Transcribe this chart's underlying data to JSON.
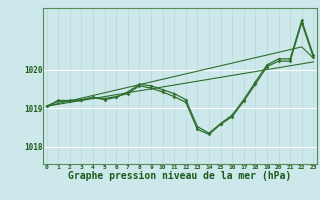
{
  "bg_color": "#cce8ea",
  "grid_color_h": "#ffffff",
  "grid_color_v": "#b8d8da",
  "line_color": "#2d6e2d",
  "xlabel": "Graphe pression niveau de la mer (hPa)",
  "xlabel_fontsize": 7,
  "ylabel_ticks": [
    1018,
    1019,
    1020
  ],
  "xlim": [
    -0.3,
    23.3
  ],
  "ylim": [
    1017.55,
    1021.6
  ],
  "xtick_labels": [
    "0",
    "1",
    "2",
    "3",
    "4",
    "5",
    "6",
    "7",
    "8",
    "9",
    "10",
    "11",
    "12",
    "13",
    "14",
    "15",
    "16",
    "17",
    "18",
    "19",
    "20",
    "21",
    "22",
    "23"
  ],
  "series1": [
    1019.05,
    1019.2,
    1019.2,
    1019.22,
    1019.28,
    1019.25,
    1019.3,
    1019.38,
    1019.58,
    1019.52,
    1019.42,
    1019.3,
    1019.15,
    1018.45,
    1018.32,
    1018.58,
    1018.78,
    1019.18,
    1019.62,
    1020.08,
    1020.22,
    1020.22,
    1021.22,
    1020.32
  ],
  "series2": [
    1019.05,
    1019.18,
    1019.18,
    1019.2,
    1019.28,
    1019.22,
    1019.28,
    1019.42,
    1019.62,
    1019.58,
    1019.48,
    1019.38,
    1019.22,
    1018.52,
    1018.35,
    1018.6,
    1018.82,
    1019.22,
    1019.68,
    1020.12,
    1020.28,
    1020.28,
    1021.28,
    1020.38
  ],
  "trend1": [
    1019.05,
    1019.12,
    1019.19,
    1019.26,
    1019.33,
    1019.4,
    1019.47,
    1019.54,
    1019.61,
    1019.68,
    1019.75,
    1019.82,
    1019.89,
    1019.96,
    1020.03,
    1020.1,
    1020.17,
    1020.24,
    1020.31,
    1020.38,
    1020.45,
    1020.52,
    1020.59,
    1020.3
  ],
  "trend2": [
    1019.05,
    1019.1,
    1019.15,
    1019.2,
    1019.25,
    1019.3,
    1019.35,
    1019.4,
    1019.45,
    1019.5,
    1019.55,
    1019.6,
    1019.65,
    1019.7,
    1019.75,
    1019.8,
    1019.85,
    1019.9,
    1019.95,
    1020.0,
    1020.05,
    1020.1,
    1020.15,
    1020.2
  ]
}
